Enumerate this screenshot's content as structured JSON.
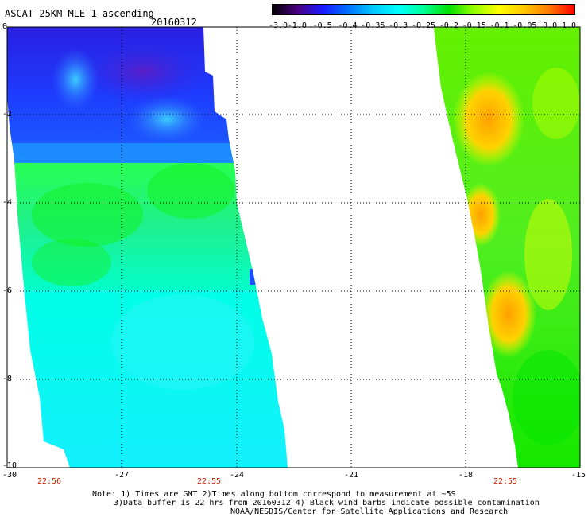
{
  "header": {
    "title": "ASCAT 25KM MLE-1 ascending",
    "date": "20160312"
  },
  "colorbar": {
    "labels": [
      "-3.0",
      "-1.0",
      "-0.5",
      "-0.4",
      "-0.35",
      "-0.3",
      "-0.25",
      "-0.2",
      "-0.15",
      "-0.1",
      "-0.05",
      "0.0",
      "1.0"
    ],
    "colors": [
      "#000000",
      "#4b0082",
      "#1a1aff",
      "#0070ff",
      "#00c8ff",
      "#00ffff",
      "#00ff96",
      "#00e000",
      "#96ff00",
      "#ffff00",
      "#ffc800",
      "#ff7800",
      "#ff0000"
    ]
  },
  "axes": {
    "lat_labels": [
      "0",
      "-2",
      "-4",
      "-6",
      "-8",
      "-10"
    ],
    "lon_labels": [
      "-30",
      "-27",
      "-24",
      "-21",
      "-18",
      "-15"
    ]
  },
  "times": [
    "22:56",
    "22:55",
    "22:55"
  ],
  "notes": {
    "line1": "Note: 1) Times are GMT 2)Times along bottom correspond to measurement at ~5S",
    "line2": "3)Data buffer is 22 hrs from 20160312 4) Black wind barbs indicate possible contamination",
    "line3": "NOAA/NESDIS/Center for Satellite Applications and Research"
  }
}
